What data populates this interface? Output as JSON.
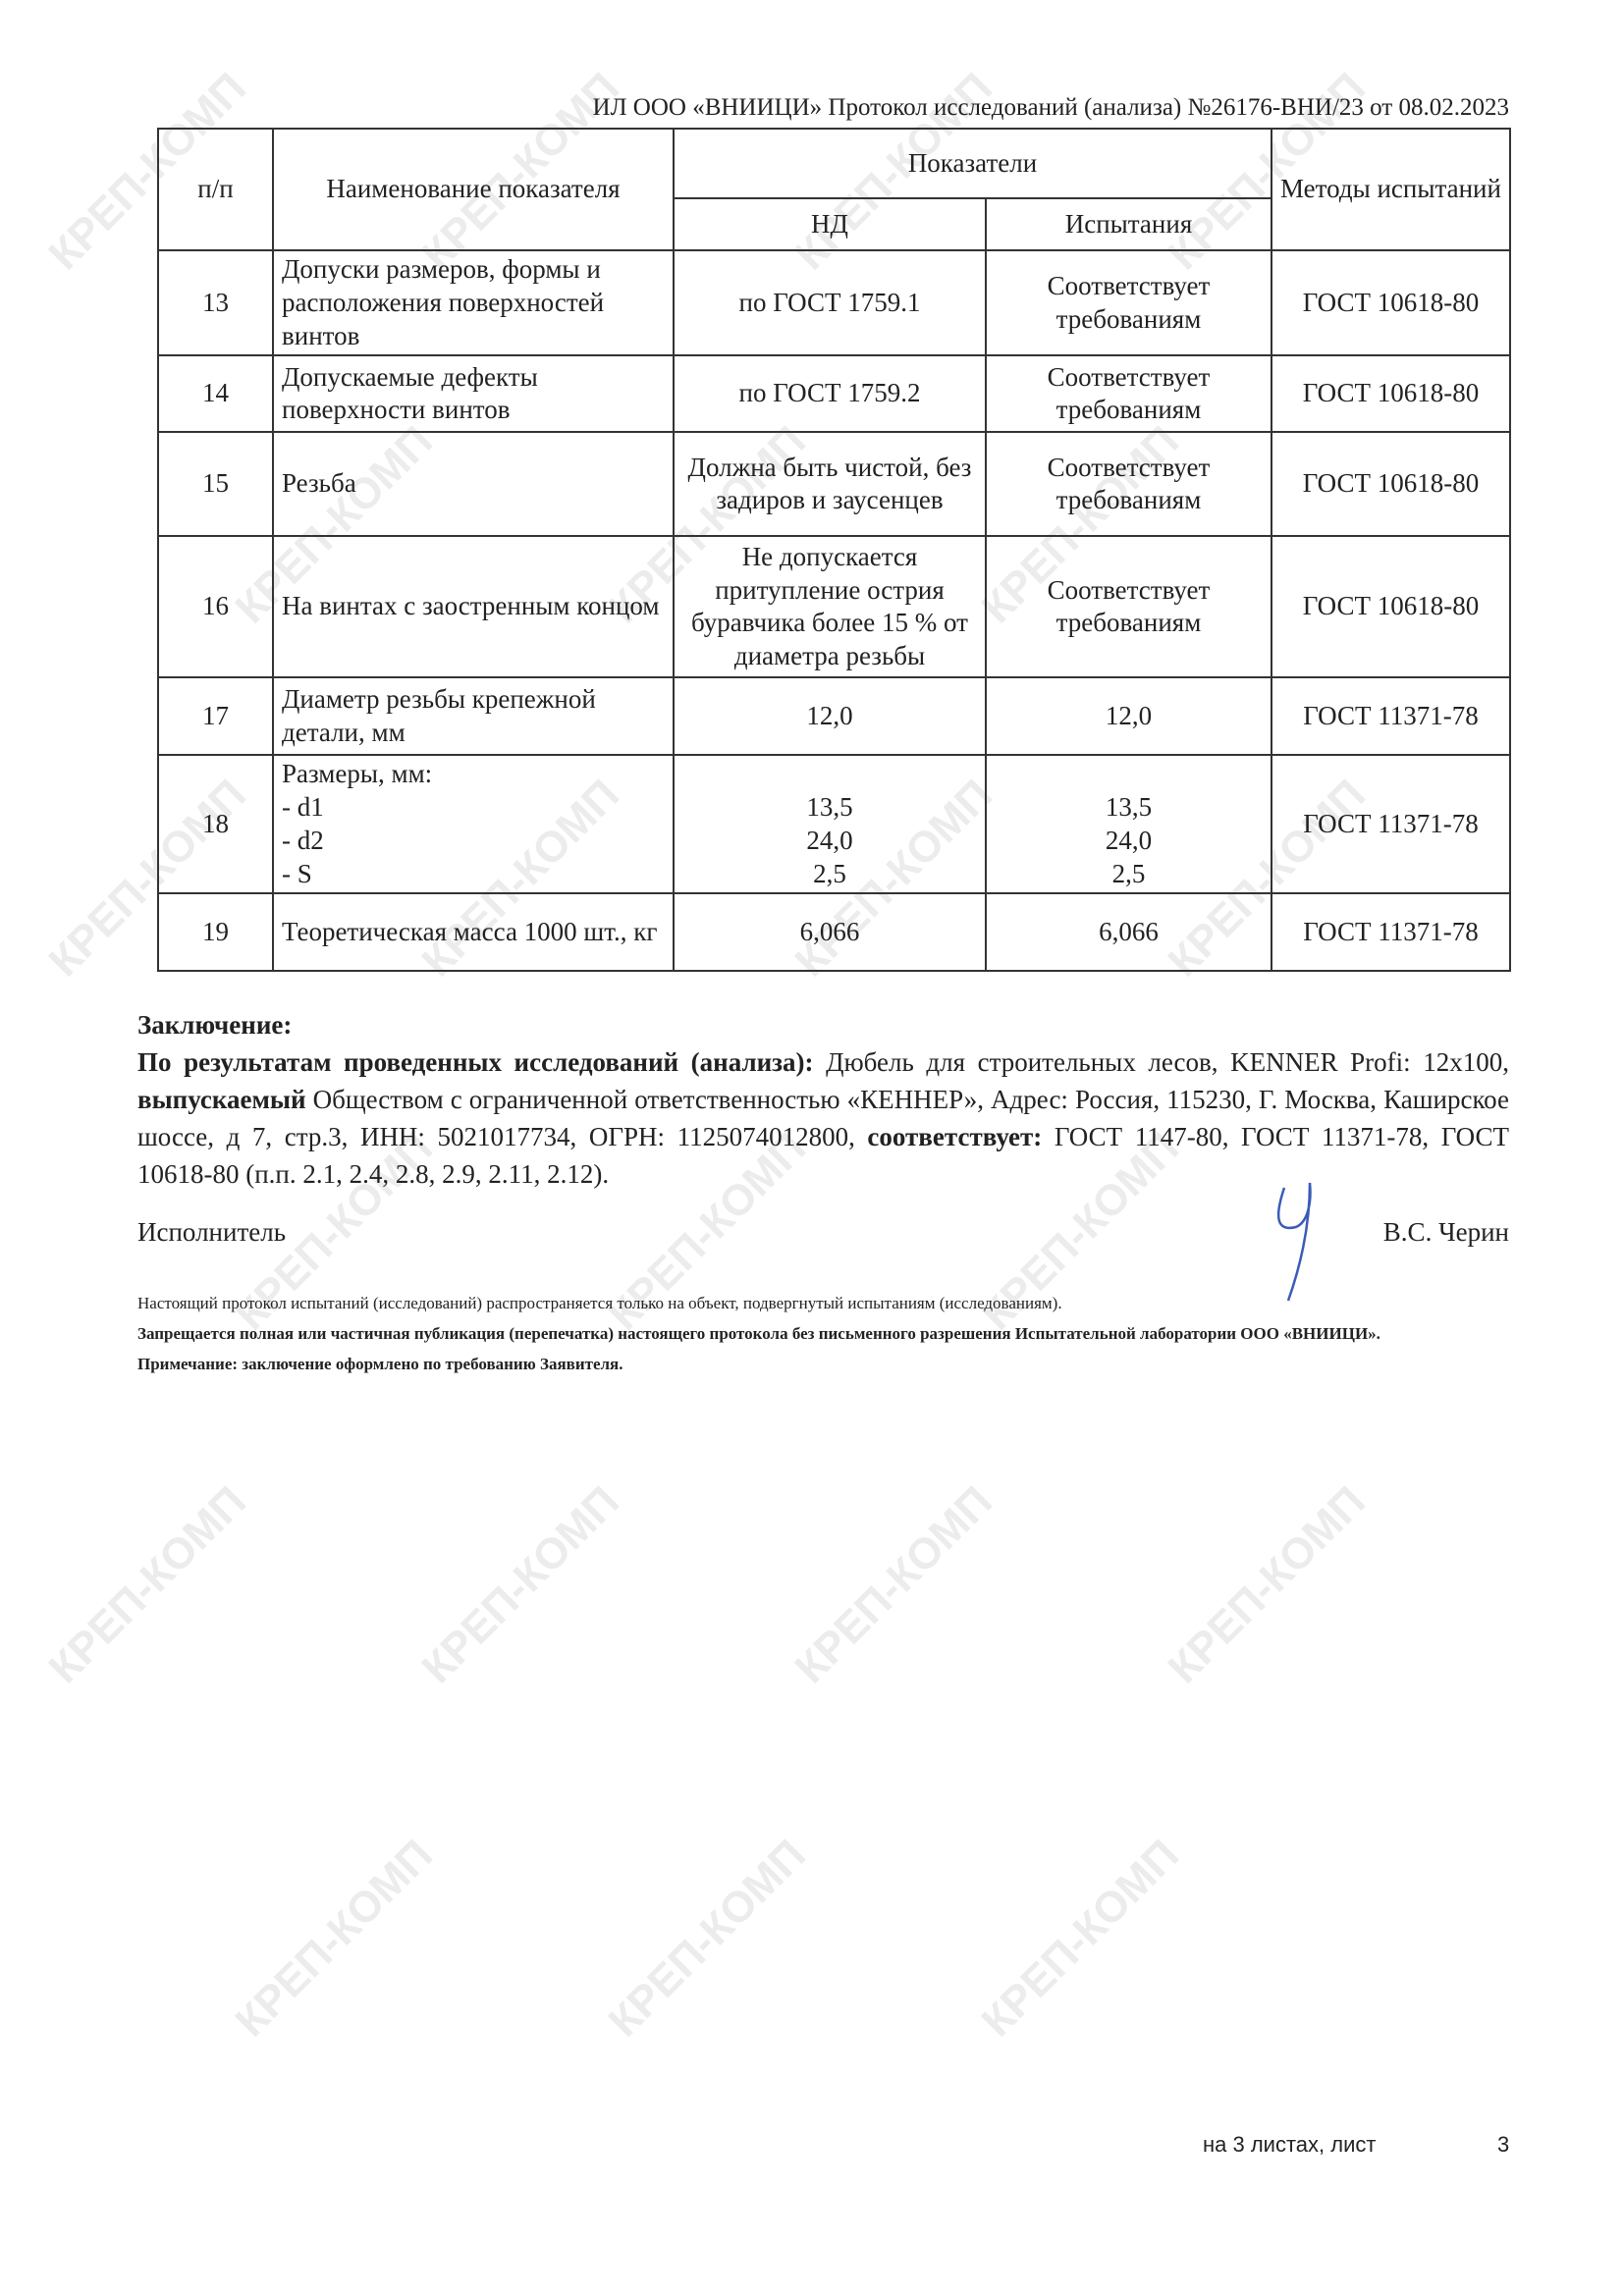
{
  "watermark": "КРЕП-КОМП",
  "header": "ИЛ ООО «ВНИИЦИ» Протокол исследований (анализа) №26176-ВНИ/23 от 08.02.2023",
  "table": {
    "headers": {
      "num": "п/п",
      "name": "Наименование показателя",
      "indicators": "Показатели",
      "nd": "НД",
      "test": "Испытания",
      "methods": "Методы испытаний"
    },
    "rows": [
      {
        "num": "13",
        "name": "Допуски размеров, формы и расположения поверхностей винтов",
        "nd": "по ГОСТ 1759.1",
        "test": "Соответствует требованиям",
        "method": "ГОСТ 10618-80"
      },
      {
        "num": "14",
        "name": "Допускаемые дефекты поверхности винтов",
        "nd": "по ГОСТ 1759.2",
        "test": "Соответствует требованиям",
        "method": "ГОСТ 10618-80"
      },
      {
        "num": "15",
        "name": "Резьба",
        "nd": "Должна быть чистой, без задиров и заусенцев",
        "test": "Соответствует требованиям",
        "method": "ГОСТ 10618-80"
      },
      {
        "num": "16",
        "name": "На винтах с заостренным концом",
        "nd": "Не допускается притупление острия буравчика более 15 % от диаметра резьбы",
        "test": "Соответствует требованиям",
        "method": "ГОСТ 10618-80"
      },
      {
        "num": "17",
        "name": "Диаметр резьбы крепежной детали, мм",
        "nd": "12,0",
        "test": "12,0",
        "method": "ГОСТ 11371-78"
      },
      {
        "num": "18",
        "name": "Размеры, мм:",
        "sub": [
          "- d1",
          "- d2",
          "- S"
        ],
        "nd_list": [
          "13,5",
          "24,0",
          "2,5"
        ],
        "test_list": [
          "13,5",
          "24,0",
          "2,5"
        ],
        "method": "ГОСТ 11371-78"
      },
      {
        "num": "19",
        "name": "Теоретическая масса 1000 шт., кг",
        "nd": "6,066",
        "test": "6,066",
        "method": "ГОСТ 11371-78"
      }
    ]
  },
  "conclusion": {
    "title": "Заключение:",
    "b1": "По результатам проведенных исследований (анализа):",
    "t1": " Дюбель для строительных лесов, KENNER Profi: 12x100, ",
    "b2": "выпускаемый",
    "t2": " Обществом с ограниченной ответственностью «КЕННЕР», Адрес: Россия, 115230, Г. Москва, Каширское шоссе, д 7, стр.3, ИНН: 5021017734, ОГРН: 1125074012800, ",
    "b3": "соответствует:",
    "t3": " ГОСТ 1147-80, ГОСТ 11371-78, ГОСТ 10618-80 (п.п. 2.1, 2.4, 2.8, 2.9, 2.11, 2.12)."
  },
  "signature": {
    "role": "Исполнитель",
    "name": "В.С. Черин",
    "ink_color": "#3a5bb8"
  },
  "notes": [
    "Настоящий протокол испытаний (исследований) распространяется только на объект, подвергнутый испытаниям (исследованиям).",
    "Запрещается полная или частичная публикация (перепечатка) настоящего протокола без письменного разрешения Испытательной лаборатории ООО «ВНИИЦИ».",
    "Примечание: заключение оформлено по требованию Заявителя."
  ],
  "footer": {
    "sheets": "на 3 листах, лист",
    "page": "3"
  }
}
